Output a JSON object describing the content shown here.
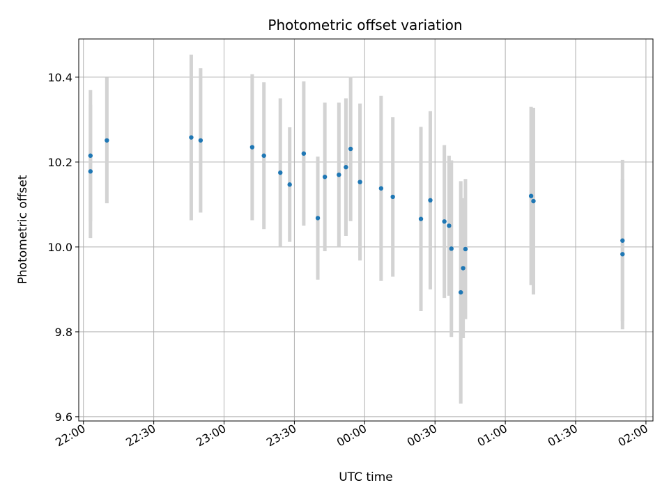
{
  "chart_data": {
    "type": "scatter",
    "title": "Photometric offset variation",
    "xlabel": "UTC time",
    "ylabel": "Photometric offset",
    "x_axis_kind": "time",
    "xlim": [
      "21:58",
      "02:03"
    ],
    "ylim": [
      9.59,
      10.49
    ],
    "x_ticks": [
      "22:00",
      "22:30",
      "23:00",
      "23:30",
      "00:00",
      "00:30",
      "01:00",
      "01:30",
      "02:00"
    ],
    "y_ticks": [
      9.6,
      9.8,
      10.0,
      10.2,
      10.4
    ],
    "grid": true,
    "point_color": "#1f77b4",
    "errorbar_color": "#d3d3d3",
    "points": [
      {
        "t": "22:03",
        "y": 10.215,
        "err": 0.155
      },
      {
        "t": "22:03",
        "y": 10.178,
        "err": 0.157
      },
      {
        "t": "22:10",
        "y": 10.251,
        "err": 0.148
      },
      {
        "t": "22:46",
        "y": 10.258,
        "err": 0.195
      },
      {
        "t": "22:50",
        "y": 10.251,
        "err": 0.17
      },
      {
        "t": "23:12",
        "y": 10.235,
        "err": 0.172
      },
      {
        "t": "23:17",
        "y": 10.215,
        "err": 0.173
      },
      {
        "t": "23:24",
        "y": 10.175,
        "err": 0.175
      },
      {
        "t": "23:28",
        "y": 10.147,
        "err": 0.135
      },
      {
        "t": "23:34",
        "y": 10.22,
        "err": 0.17
      },
      {
        "t": "23:40",
        "y": 10.068,
        "err": 0.145
      },
      {
        "t": "23:43",
        "y": 10.165,
        "err": 0.175
      },
      {
        "t": "23:49",
        "y": 10.17,
        "err": 0.17
      },
      {
        "t": "23:52",
        "y": 10.188,
        "err": 0.162
      },
      {
        "t": "23:54",
        "y": 10.231,
        "err": 0.17
      },
      {
        "t": "23:58",
        "y": 10.153,
        "err": 0.185
      },
      {
        "t": "00:07",
        "y": 10.138,
        "err": 0.218
      },
      {
        "t": "00:12",
        "y": 10.118,
        "err": 0.188
      },
      {
        "t": "00:24",
        "y": 10.066,
        "err": 0.217
      },
      {
        "t": "00:28",
        "y": 10.11,
        "err": 0.21
      },
      {
        "t": "00:34",
        "y": 10.06,
        "err": 0.18
      },
      {
        "t": "00:36",
        "y": 10.05,
        "err": 0.165
      },
      {
        "t": "00:37",
        "y": 9.996,
        "err": 0.208
      },
      {
        "t": "00:41",
        "y": 9.893,
        "err": 0.262
      },
      {
        "t": "00:42",
        "y": 9.95,
        "err": 0.165
      },
      {
        "t": "00:43",
        "y": 9.995,
        "err": 0.165
      },
      {
        "t": "01:11",
        "y": 10.12,
        "err": 0.21
      },
      {
        "t": "01:12",
        "y": 10.108,
        "err": 0.22
      },
      {
        "t": "01:50",
        "y": 10.015,
        "err": 0.19
      },
      {
        "t": "01:50",
        "y": 9.983,
        "err": 0.177
      }
    ]
  }
}
